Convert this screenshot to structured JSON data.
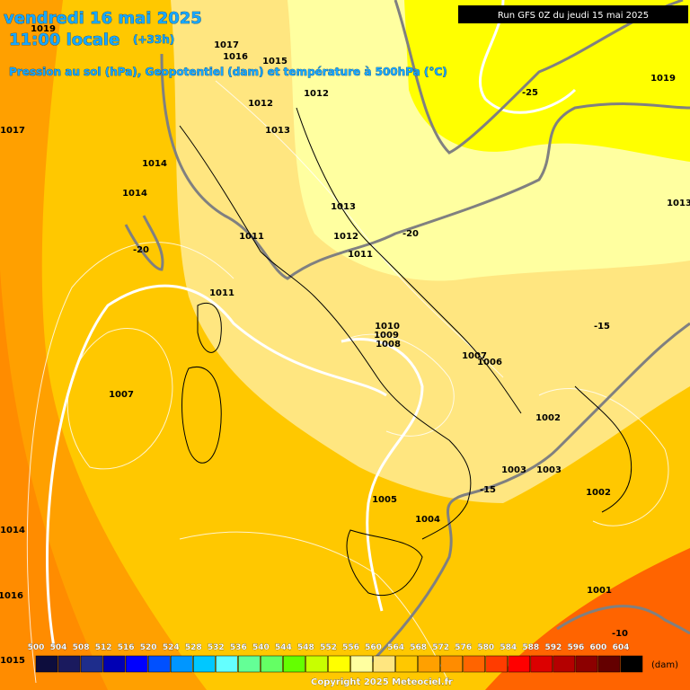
{
  "header": {
    "date": "vendredi 16 mai 2025",
    "time": "11:00 locale",
    "lead": "(+33h)",
    "subtitle": "Pression au sol (hPa), Geopotentiel (dam) et température à 500hPa (°C)",
    "run": "Run GFS 0Z du jeudi 15 mai 2025"
  },
  "pressure_labels": [
    "1019",
    "1017",
    "1016",
    "1015",
    "1019",
    "1012",
    "1012",
    "1017",
    "1013",
    "1014",
    "1014",
    "1013",
    "1013",
    "1012",
    "1011",
    "1011",
    "1011",
    "1010",
    "1009",
    "1008",
    "1007",
    "1006",
    "1007",
    "1002",
    "1003",
    "1003",
    "1002",
    "1005",
    "1004",
    "1014",
    "1001",
    "1016",
    "1015"
  ],
  "temperature_labels": [
    "-25",
    "-20",
    "-20",
    "-15",
    "-15",
    "-10"
  ],
  "legend": {
    "unit": "(dam)",
    "items": [
      {
        "value": 500,
        "color": "#0d0d3d"
      },
      {
        "value": 504,
        "color": "#1a1a5e"
      },
      {
        "value": 508,
        "color": "#1e2d8c"
      },
      {
        "value": 512,
        "color": "#0000b4"
      },
      {
        "value": 516,
        "color": "#0000ff"
      },
      {
        "value": 520,
        "color": "#0050ff"
      },
      {
        "value": 524,
        "color": "#0096ff"
      },
      {
        "value": 528,
        "color": "#00c8ff"
      },
      {
        "value": 532,
        "color": "#64ffff"
      },
      {
        "value": 536,
        "color": "#64ff96"
      },
      {
        "value": 540,
        "color": "#64ff64"
      },
      {
        "value": 544,
        "color": "#64ff00"
      },
      {
        "value": 548,
        "color": "#c8ff00"
      },
      {
        "value": 552,
        "color": "#ffff00"
      },
      {
        "value": 556,
        "color": "#ffffa0"
      },
      {
        "value": 560,
        "color": "#ffe680"
      },
      {
        "value": 564,
        "color": "#ffc800"
      },
      {
        "value": 568,
        "color": "#ffa000"
      },
      {
        "value": 572,
        "color": "#ff8c00"
      },
      {
        "value": 576,
        "color": "#ff6400"
      },
      {
        "value": 580,
        "color": "#ff3c00"
      },
      {
        "value": 584,
        "color": "#ff0000"
      },
      {
        "value": 588,
        "color": "#dc0000"
      },
      {
        "value": 592,
        "color": "#b40000"
      },
      {
        "value": 596,
        "color": "#8c0000"
      },
      {
        "value": 600,
        "color": "#640000"
      },
      {
        "value": 604,
        "color": "#000000"
      }
    ]
  },
  "copyright": "Copyright 2025 Meteociel.fr"
}
